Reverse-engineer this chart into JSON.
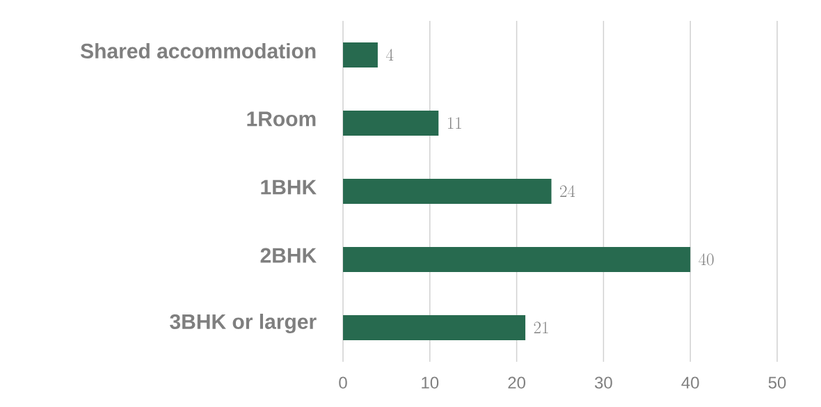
{
  "chart_data": {
    "type": "bar",
    "orientation": "horizontal",
    "categories": [
      "Shared accommodation",
      "1Room",
      "1BHK",
      "2BHK",
      "3BHK or larger"
    ],
    "values": [
      4,
      11,
      24,
      40,
      21
    ],
    "color": "#276a4f",
    "xlim": [
      0,
      50
    ],
    "xticks": [
      0,
      10,
      20,
      30,
      40,
      50
    ],
    "grid": "x",
    "data_labels": true
  }
}
